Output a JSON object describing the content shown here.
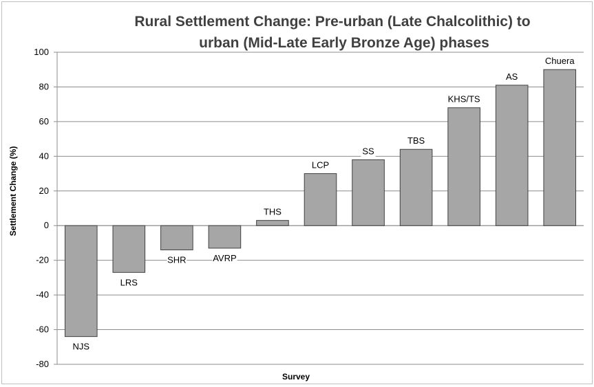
{
  "chart_data": {
    "type": "bar",
    "title_line1": "Rural Settlement Change: Pre-urban (Late Chalcolithic) to",
    "title_line2": "urban (Mid-Late Early Bronze Age) phases",
    "xlabel": "Survey",
    "ylabel": "Settlement Change (%)",
    "ylim": [
      -80,
      100
    ],
    "yticks": [
      100,
      80,
      60,
      40,
      20,
      0,
      -20,
      -40,
      -60,
      -80
    ],
    "grid": true,
    "categories": [
      "NJS",
      "LRS",
      "SHR",
      "AVRP",
      "THS",
      "LCP",
      "SS",
      "TBS",
      "KHS/TS",
      "AS",
      "Chuera"
    ],
    "values": [
      -64,
      -27,
      -14,
      -13,
      3,
      30,
      38,
      44,
      68,
      81,
      90
    ],
    "colors": {
      "bar": "#a6a6a6",
      "bar_border": "#404040",
      "grid": "#8c8c8c",
      "title": "#404040"
    }
  }
}
